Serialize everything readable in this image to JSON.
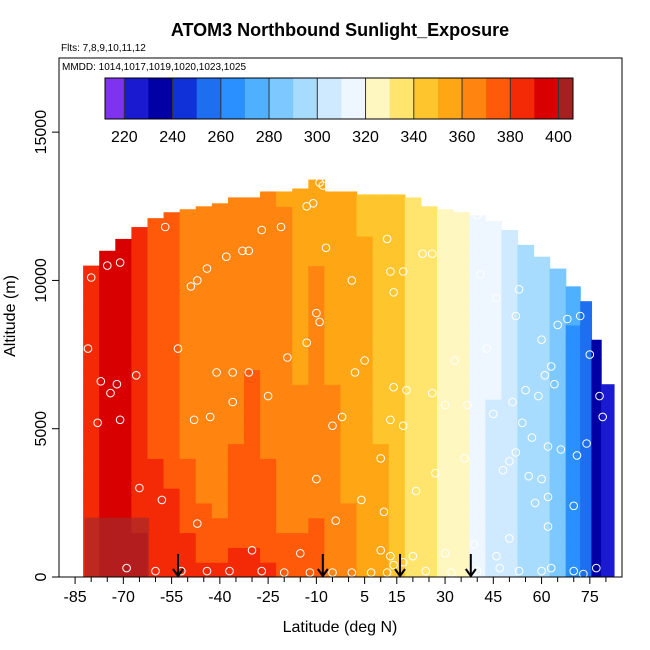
{
  "chart_data": {
    "type": "heatmap",
    "title": "ATOM3 Northbound Sunlight_Exposure",
    "subtitle_flights": "Flts: 7,8,9,10,11,12",
    "subtitle_dates": "MMDD: 1014,1017,1019,1020,1023,1025",
    "xlabel": "Latitude (deg N)",
    "ylabel": "Altitude (m)",
    "xlim": [
      -90,
      85
    ],
    "ylim": [
      0,
      17500
    ],
    "x_ticks": [
      -85,
      -70,
      -55,
      -40,
      -25,
      -10,
      5,
      15,
      30,
      45,
      60,
      75
    ],
    "x_minor_ticks": [
      -80,
      -75,
      -65,
      -60,
      -50,
      -45,
      -35,
      -30,
      -20,
      -15,
      -5,
      0,
      10,
      20,
      25,
      35,
      40,
      50,
      55,
      65,
      70,
      80
    ],
    "y_ticks": [
      0,
      5000,
      10000,
      15000
    ],
    "colorbar": {
      "range": [
        212,
        406
      ],
      "ticks": [
        220,
        240,
        260,
        280,
        300,
        320,
        340,
        360,
        380,
        400
      ],
      "segments": [
        {
          "from": 212,
          "to": 220,
          "color": "#7f33ef"
        },
        {
          "from": 220,
          "to": 230,
          "color": "#1a1ad0"
        },
        {
          "from": 230,
          "to": 240,
          "color": "#0000a5"
        },
        {
          "from": 240,
          "to": 250,
          "color": "#1030d8"
        },
        {
          "from": 250,
          "to": 260,
          "color": "#1e6ff0"
        },
        {
          "from": 260,
          "to": 270,
          "color": "#2a90ff"
        },
        {
          "from": 270,
          "to": 280,
          "color": "#4fb0ff"
        },
        {
          "from": 280,
          "to": 290,
          "color": "#7cc8ff"
        },
        {
          "from": 290,
          "to": 300,
          "color": "#a8dcff"
        },
        {
          "from": 300,
          "to": 310,
          "color": "#cfeaff"
        },
        {
          "from": 310,
          "to": 320,
          "color": "#eef7ff"
        },
        {
          "from": 320,
          "to": 330,
          "color": "#fff6c0"
        },
        {
          "from": 330,
          "to": 340,
          "color": "#ffe56e"
        },
        {
          "from": 340,
          "to": 350,
          "color": "#ffc52c"
        },
        {
          "from": 350,
          "to": 360,
          "color": "#ffa614"
        },
        {
          "from": 360,
          "to": 370,
          "color": "#ff8410"
        },
        {
          "from": 370,
          "to": 380,
          "color": "#ff5a0a"
        },
        {
          "from": 380,
          "to": 390,
          "color": "#f42a06"
        },
        {
          "from": 390,
          "to": 400,
          "color": "#d80000"
        },
        {
          "from": 400,
          "to": 406,
          "color": "#a52020"
        }
      ]
    },
    "field_columns": [
      {
        "lat": -80,
        "top_alt": 10500,
        "profile": [
          [
            0,
            385
          ],
          [
            17500,
            385
          ]
        ]
      },
      {
        "lat": -75,
        "top_alt": 11000,
        "profile": [
          [
            0,
            398
          ],
          [
            17500,
            390
          ]
        ]
      },
      {
        "lat": -70,
        "top_alt": 11400,
        "profile": [
          [
            0,
            400
          ],
          [
            17500,
            388
          ]
        ]
      },
      {
        "lat": -65,
        "top_alt": 11800,
        "profile": [
          [
            0,
            392
          ],
          [
            6000,
            383
          ],
          [
            17500,
            378
          ]
        ]
      },
      {
        "lat": -60,
        "top_alt": 12100,
        "profile": [
          [
            0,
            388
          ],
          [
            6000,
            376
          ],
          [
            17500,
            372
          ]
        ]
      },
      {
        "lat": -55,
        "top_alt": 12300,
        "profile": [
          [
            0,
            390
          ],
          [
            5000,
            372
          ],
          [
            17500,
            370
          ]
        ]
      },
      {
        "lat": -50,
        "top_alt": 12400,
        "profile": [
          [
            0,
            386
          ],
          [
            4000,
            370
          ],
          [
            17500,
            368
          ]
        ]
      },
      {
        "lat": -45,
        "top_alt": 12500,
        "profile": [
          [
            0,
            382
          ],
          [
            3000,
            366
          ],
          [
            17500,
            366
          ]
        ]
      },
      {
        "lat": -40,
        "top_alt": 12600,
        "profile": [
          [
            0,
            385
          ],
          [
            2000,
            368
          ],
          [
            17500,
            364
          ]
        ]
      },
      {
        "lat": -35,
        "top_alt": 12800,
        "profile": [
          [
            0,
            388
          ],
          [
            1500,
            372
          ],
          [
            17500,
            362
          ]
        ]
      },
      {
        "lat": -30,
        "top_alt": 12800,
        "profile": [
          [
            0,
            385
          ],
          [
            1500,
            375
          ],
          [
            17500,
            360
          ]
        ]
      },
      {
        "lat": -25,
        "top_alt": 13000,
        "profile": [
          [
            0,
            382
          ],
          [
            2000,
            372
          ],
          [
            17500,
            358
          ]
        ]
      },
      {
        "lat": -20,
        "top_alt": 13000,
        "profile": [
          [
            0,
            380
          ],
          [
            2000,
            368
          ],
          [
            17500,
            356
          ]
        ]
      },
      {
        "lat": -15,
        "top_alt": 13100,
        "profile": [
          [
            0,
            378
          ],
          [
            2500,
            362
          ],
          [
            17500,
            354
          ]
        ]
      },
      {
        "lat": -10,
        "top_alt": 13400,
        "profile": [
          [
            0,
            372
          ],
          [
            17500,
            352
          ]
        ]
      },
      {
        "lat": -5,
        "top_alt": 13000,
        "profile": [
          [
            0,
            366
          ],
          [
            17500,
            350
          ]
        ]
      },
      {
        "lat": 0,
        "top_alt": 13000,
        "profile": [
          [
            0,
            362
          ],
          [
            17500,
            348
          ]
        ]
      },
      {
        "lat": 5,
        "top_alt": 12900,
        "profile": [
          [
            0,
            358
          ],
          [
            17500,
            346
          ]
        ]
      },
      {
        "lat": 10,
        "top_alt": 12900,
        "profile": [
          [
            0,
            352
          ],
          [
            17500,
            344
          ]
        ]
      },
      {
        "lat": 15,
        "top_alt": 12900,
        "profile": [
          [
            0,
            345
          ],
          [
            17500,
            340
          ]
        ]
      },
      {
        "lat": 20,
        "top_alt": 12800,
        "profile": [
          [
            0,
            338
          ],
          [
            17500,
            336
          ]
        ]
      },
      {
        "lat": 25,
        "top_alt": 12500,
        "profile": [
          [
            0,
            332
          ],
          [
            17500,
            333
          ]
        ]
      },
      {
        "lat": 30,
        "top_alt": 12400,
        "profile": [
          [
            0,
            326
          ],
          [
            17500,
            330
          ]
        ]
      },
      {
        "lat": 35,
        "top_alt": 12300,
        "profile": [
          [
            0,
            320
          ],
          [
            17500,
            326
          ]
        ]
      },
      {
        "lat": 40,
        "top_alt": 12200,
        "profile": [
          [
            0,
            314
          ],
          [
            17500,
            320
          ]
        ]
      },
      {
        "lat": 45,
        "top_alt": 12000,
        "profile": [
          [
            0,
            308
          ],
          [
            17500,
            314
          ]
        ]
      },
      {
        "lat": 50,
        "top_alt": 11700,
        "profile": [
          [
            0,
            302
          ],
          [
            17500,
            306
          ]
        ]
      },
      {
        "lat": 55,
        "top_alt": 11200,
        "profile": [
          [
            0,
            296
          ],
          [
            17500,
            298
          ]
        ]
      },
      {
        "lat": 60,
        "top_alt": 10800,
        "profile": [
          [
            0,
            292
          ],
          [
            17500,
            292
          ]
        ]
      },
      {
        "lat": 65,
        "top_alt": 10400,
        "profile": [
          [
            0,
            285
          ],
          [
            17500,
            282
          ]
        ]
      },
      {
        "lat": 70,
        "top_alt": 9800,
        "profile": [
          [
            0,
            268
          ],
          [
            17500,
            272
          ]
        ]
      },
      {
        "lat": 74,
        "top_alt": 9300,
        "profile": [
          [
            0,
            250
          ],
          [
            17500,
            258
          ]
        ]
      },
      {
        "lat": 77,
        "top_alt": 8000,
        "profile": [
          [
            0,
            235
          ],
          [
            17500,
            240
          ]
        ]
      },
      {
        "lat": 80,
        "top_alt": 6500,
        "profile": [
          [
            0,
            222
          ],
          [
            17500,
            230
          ]
        ]
      }
    ],
    "field_note_colour_bottom_edge": {
      "lat_from": -82,
      "lat_to": -62,
      "alt_to": 2000,
      "color": "#a52a2a"
    },
    "sample_points": [
      [
        -81,
        7700
      ],
      [
        -77,
        6600
      ],
      [
        -74,
        6200
      ],
      [
        -72,
        6500
      ],
      [
        -71,
        5300
      ],
      [
        -78,
        5200
      ],
      [
        -75,
        10500
      ],
      [
        -71,
        10600
      ],
      [
        -80,
        10100
      ],
      [
        -66,
        6800
      ],
      [
        -57,
        11800
      ],
      [
        -49,
        9800
      ],
      [
        -47,
        10000
      ],
      [
        -44,
        10400
      ],
      [
        -38,
        10800
      ],
      [
        -33,
        11000
      ],
      [
        -31,
        11000
      ],
      [
        -27,
        11700
      ],
      [
        -21,
        11800
      ],
      [
        -13,
        12500
      ],
      [
        -11,
        12600
      ],
      [
        -9,
        13300
      ],
      [
        -8,
        13200
      ],
      [
        -53,
        7700
      ],
      [
        -41,
        6900
      ],
      [
        -36,
        6900
      ],
      [
        -31,
        6900
      ],
      [
        -43,
        5400
      ],
      [
        -36,
        5900
      ],
      [
        -25,
        6100
      ],
      [
        -48,
        5300
      ],
      [
        -10,
        8900
      ],
      [
        -9,
        8600
      ],
      [
        -19,
        7400
      ],
      [
        -13,
        7900
      ],
      [
        -5,
        5100
      ],
      [
        -2,
        5400
      ],
      [
        2,
        6900
      ],
      [
        5,
        7300
      ],
      [
        1,
        10000
      ],
      [
        -7,
        11100
      ],
      [
        12,
        11400
      ],
      [
        13,
        10300
      ],
      [
        14,
        9600
      ],
      [
        17,
        10300
      ],
      [
        23,
        10900
      ],
      [
        26,
        10900
      ],
      [
        26,
        6200
      ],
      [
        30,
        5800
      ],
      [
        37,
        5800
      ],
      [
        33,
        7300
      ],
      [
        40,
        12200
      ],
      [
        41,
        10200
      ],
      [
        46,
        9400
      ],
      [
        52,
        8800
      ],
      [
        53,
        9700
      ],
      [
        43,
        7700
      ],
      [
        45,
        5500
      ],
      [
        51,
        5900
      ],
      [
        55,
        6300
      ],
      [
        59,
        6100
      ],
      [
        61,
        6800
      ],
      [
        63,
        7100
      ],
      [
        65,
        8500
      ],
      [
        68,
        8700
      ],
      [
        72,
        8800
      ],
      [
        75,
        7500
      ],
      [
        78,
        6100
      ],
      [
        79,
        5400
      ],
      [
        74,
        4500
      ],
      [
        62,
        4400
      ],
      [
        57,
        4700
      ],
      [
        52,
        4200
      ],
      [
        50,
        3900
      ],
      [
        56,
        3400
      ],
      [
        60,
        3300
      ],
      [
        62,
        2700
      ],
      [
        58,
        2500
      ],
      [
        62,
        1700
      ],
      [
        66,
        4300
      ],
      [
        70,
        2400
      ],
      [
        71,
        4100
      ],
      [
        14,
        6400
      ],
      [
        18,
        6300
      ],
      [
        13,
        5300
      ],
      [
        17,
        5100
      ],
      [
        10,
        4000
      ],
      [
        11,
        2200
      ],
      [
        -10,
        3300
      ],
      [
        10,
        900
      ],
      [
        13,
        700
      ],
      [
        17,
        500
      ],
      [
        20,
        700
      ],
      [
        -69,
        300
      ],
      [
        -60,
        200
      ],
      [
        -52,
        200
      ],
      [
        -44,
        200
      ],
      [
        -37,
        200
      ],
      [
        -27,
        200
      ],
      [
        -20,
        150
      ],
      [
        -12,
        150
      ],
      [
        -5,
        150
      ],
      [
        1,
        150
      ],
      [
        7,
        150
      ],
      [
        12,
        150
      ],
      [
        14,
        400
      ],
      [
        24,
        200
      ],
      [
        32,
        150
      ],
      [
        40,
        200
      ],
      [
        47,
        300
      ],
      [
        53,
        200
      ],
      [
        60,
        200
      ],
      [
        63,
        300
      ],
      [
        70,
        200
      ],
      [
        73,
        100
      ],
      [
        77,
        300
      ],
      [
        60,
        8000
      ],
      [
        64,
        6500
      ],
      [
        54,
        5200
      ],
      [
        48,
        3600
      ],
      [
        36,
        4000
      ],
      [
        27,
        3500
      ],
      [
        21,
        2900
      ],
      [
        4,
        2600
      ],
      [
        -4,
        1900
      ],
      [
        -15,
        800
      ],
      [
        -30,
        900
      ],
      [
        -47,
        1800
      ],
      [
        -58,
        2600
      ],
      [
        -65,
        3000
      ],
      [
        46,
        700
      ],
      [
        50,
        1300
      ],
      [
        39,
        1100
      ],
      [
        30,
        800
      ]
    ],
    "arrow_markers_lat": [
      -53,
      -8,
      16,
      38
    ]
  }
}
